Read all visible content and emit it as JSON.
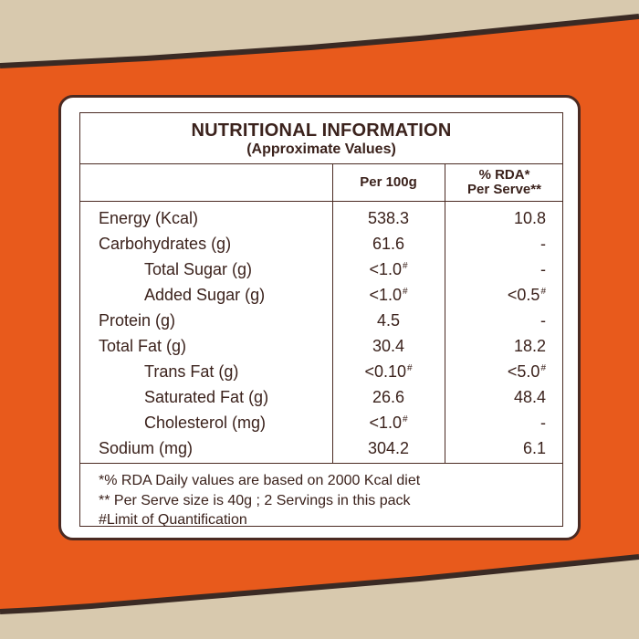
{
  "colors": {
    "background": "#e85a1c",
    "paper": "#d8c9ae",
    "border": "#4a2a22",
    "text": "#3b221c"
  },
  "panel": {
    "title": "NUTRITIONAL INFORMATION",
    "subtitle": "(Approximate Values)",
    "columns": {
      "per100": "Per 100g",
      "rda_line1": "% RDA*",
      "rda_line2": "Per Serve**"
    },
    "rows": [
      {
        "label": "Energy (Kcal)",
        "per100": "538.3",
        "rda": "10.8"
      },
      {
        "label": "Carbohydrates (g)",
        "per100": "61.6",
        "rda": "-"
      },
      {
        "label": "Total Sugar (g)",
        "per100": "<1.0",
        "per100_mark": "#",
        "rda": "-"
      },
      {
        "label": "Added Sugar (g)",
        "per100": "<1.0",
        "per100_mark": "#",
        "rda": "<0.5",
        "rda_mark": "#"
      },
      {
        "label": "Protein (g)",
        "per100": "4.5",
        "rda": "-"
      },
      {
        "label": "Total Fat (g)",
        "per100": "30.4",
        "rda": "18.2"
      },
      {
        "label": "Trans Fat (g)",
        "per100": "<0.10",
        "per100_mark": "#",
        "rda": "<5.0",
        "rda_mark": "#"
      },
      {
        "label": "Saturated Fat (g)",
        "per100": "26.6",
        "rda": "48.4"
      },
      {
        "label": "Cholesterol (mg)",
        "per100": "<1.0",
        "per100_mark": "#",
        "rda": "-"
      },
      {
        "label": "Sodium (mg)",
        "per100": "304.2",
        "rda": "6.1"
      }
    ],
    "notes": [
      "*% RDA Daily values are based on 2000 Kcal diet",
      "** Per Serve size is 40g ; 2 Servings in this pack",
      "#Limit of Quantification"
    ]
  }
}
